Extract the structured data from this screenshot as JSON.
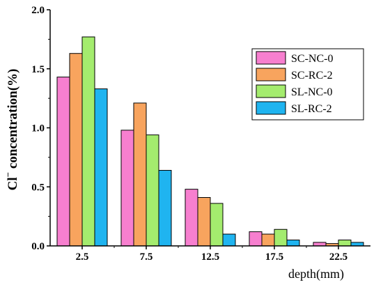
{
  "chart_data": {
    "type": "bar",
    "categories": [
      "2.5",
      "7.5",
      "12.5",
      "17.5",
      "22.5"
    ],
    "series": [
      {
        "name": "SC-NC-0",
        "color": "#f77fcf",
        "values": [
          1.43,
          0.98,
          0.48,
          0.12,
          0.03
        ]
      },
      {
        "name": "SC-RC-2",
        "color": "#f8a45e",
        "values": [
          1.63,
          1.21,
          0.41,
          0.1,
          0.02
        ]
      },
      {
        "name": "SL-NC-0",
        "color": "#a4ec6e",
        "values": [
          1.77,
          0.94,
          0.36,
          0.14,
          0.05
        ]
      },
      {
        "name": "SL-RC-2",
        "color": "#1fb4f0",
        "values": [
          1.33,
          0.64,
          0.1,
          0.05,
          0.03
        ]
      }
    ],
    "xlabel": "depth(mm)",
    "ylabel": {
      "symbol": "Cl",
      "superscript": "−",
      "rest": " concentration(%)"
    },
    "ylim": [
      0,
      2.0
    ],
    "yticks": [
      "0.0",
      "0.5",
      "1.0",
      "1.5",
      "2.0"
    ],
    "grid": false,
    "legend_position": "top-right"
  }
}
